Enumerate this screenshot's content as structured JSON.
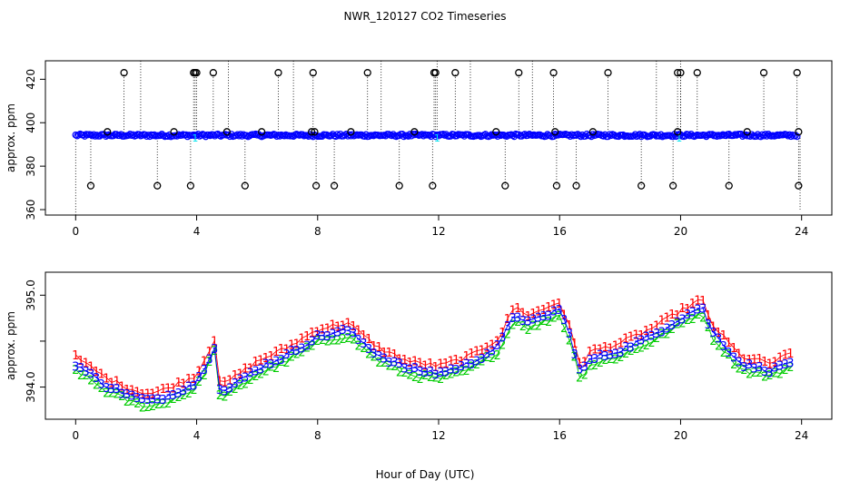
{
  "title": "NWR_120127  CO2 Timeseries",
  "colors": {
    "series1": "#ff0000",
    "series2": "#00cc00",
    "series3": "#0000ff",
    "cyan": "#00e5ee",
    "points": "#000000",
    "blueLine": "#0000ff"
  },
  "chart_data": [
    {
      "type": "scatter",
      "name": "top-panel",
      "xlabel": "",
      "ylabel": "approx. ppm",
      "xlim": [
        -1,
        25
      ],
      "ylim": [
        357.5,
        428.5
      ],
      "x_ticks": [
        0,
        4,
        8,
        12,
        16,
        20,
        24
      ],
      "y_ticks": [
        360,
        380,
        400,
        420
      ],
      "y_tick_labels": [
        "360",
        "380",
        "400",
        "420"
      ],
      "baseline": 394.2,
      "spikes_high": [
        1.6,
        3.9,
        3.95,
        4.0,
        4.55,
        6.7,
        7.85,
        9.65,
        11.85,
        11.9,
        12.55,
        14.65,
        15.8,
        17.6,
        19.9,
        20.0,
        20.55,
        22.75,
        23.85
      ],
      "spikes_low": [
        0.5,
        2.7,
        3.8,
        5.6,
        7.95,
        8.55,
        10.7,
        11.8,
        14.2,
        15.9,
        16.55,
        18.7,
        19.75,
        21.6,
        23.9
      ],
      "spikes_mid": [
        1.05,
        3.25,
        5.0,
        6.15,
        7.8,
        7.9,
        9.1,
        11.2,
        13.9,
        15.85,
        17.1,
        19.9,
        22.2,
        23.9
      ],
      "tall_lines": [
        2.15,
        5.05,
        7.2,
        10.1,
        11.95,
        13.05,
        15.1,
        19.2,
        20.0
      ]
    },
    {
      "type": "line",
      "name": "bottom-panel",
      "xlabel": "Hour of Day (UTC)",
      "ylabel": "approx. ppm",
      "xlim": [
        -1,
        25
      ],
      "ylim": [
        393.65,
        395.25
      ],
      "x_ticks": [
        0,
        4,
        8,
        12,
        16,
        20,
        24
      ],
      "y_ticks": [
        394.0,
        394.5,
        395.0
      ],
      "y_tick_labels": [
        "394.0",
        "",
        "395.0"
      ],
      "series": [
        {
          "name": "1",
          "offset": 0.08
        },
        {
          "name": "2",
          "offset": -0.06
        },
        {
          "name": "3",
          "offset": 0.0
        }
      ],
      "x": [
        0,
        1,
        2,
        2.5,
        3,
        4,
        4.6,
        4.75,
        4.9,
        6,
        7,
        7.5,
        8,
        9,
        10,
        11,
        12,
        13,
        14,
        14.5,
        15,
        16,
        16.3,
        16.7,
        17,
        18,
        19,
        20,
        20.7,
        21,
        22,
        23,
        23.6
      ],
      "values": [
        394.25,
        394.02,
        393.88,
        393.85,
        393.9,
        394.05,
        394.45,
        394.0,
        393.95,
        394.2,
        394.35,
        394.45,
        394.55,
        394.62,
        394.35,
        394.2,
        394.15,
        394.25,
        394.45,
        394.8,
        394.7,
        394.85,
        394.6,
        394.15,
        394.3,
        394.4,
        394.55,
        394.75,
        394.88,
        394.62,
        394.25,
        394.18,
        394.28
      ]
    }
  ]
}
